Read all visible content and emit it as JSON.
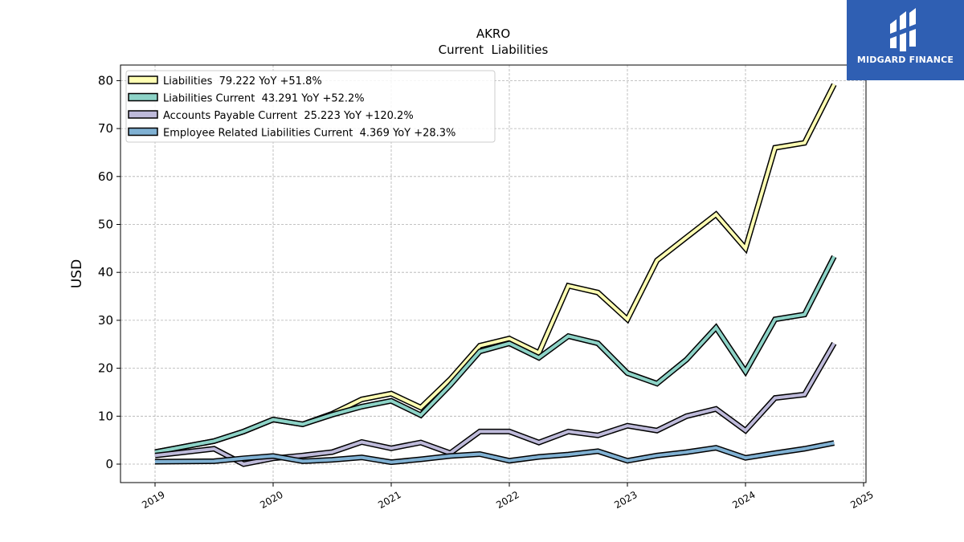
{
  "chart_data": {
    "type": "line",
    "title": "AKRO",
    "subtitle": "Current  Liabilities",
    "xlabel": "",
    "ylabel": "USD",
    "xlim": [
      2018.7,
      2025.0
    ],
    "ylim": [
      -4,
      83
    ],
    "x_ticks": [
      "2019",
      "2020",
      "2021",
      "2022",
      "2023",
      "2024",
      "2025"
    ],
    "y_ticks": [
      "0",
      "10",
      "20",
      "30",
      "40",
      "50",
      "60",
      "70",
      "80"
    ],
    "grid": true,
    "legend_position": "top-left",
    "series": [
      {
        "name": "Liabilities",
        "legend": "Liabilities  79.222 YoY +51.8%",
        "color": "#ffffb3",
        "x": [
          2019.0,
          2019.5,
          2019.75,
          2020.0,
          2020.25,
          2020.5,
          2020.75,
          2021.0,
          2021.25,
          2021.5,
          2021.75,
          2022.0,
          2022.25,
          2022.5,
          2022.75,
          2023.0,
          2023.25,
          2023.5,
          2023.75,
          2024.0,
          2024.25,
          2024.5,
          2024.75
        ],
        "values": [
          2.5,
          4.8,
          6.8,
          9.3,
          8.3,
          10.5,
          13.5,
          14.7,
          11.8,
          17.7,
          24.7,
          26.2,
          23.2,
          37.2,
          35.8,
          30.2,
          42.5,
          47.3,
          52.1,
          45.0,
          66.0,
          67.0,
          79.2
        ]
      },
      {
        "name": "Liabilities Current",
        "legend": "Liabilities Current  43.291 YoY +52.2%",
        "color": "#8dd3c7",
        "x": [
          2019.0,
          2019.5,
          2019.75,
          2020.0,
          2020.25,
          2020.5,
          2020.75,
          2021.0,
          2021.25,
          2021.5,
          2021.75,
          2022.0,
          2022.25,
          2022.5,
          2022.75,
          2023.0,
          2023.25,
          2023.5,
          2023.75,
          2024.0,
          2024.25,
          2024.5,
          2024.75
        ],
        "values": [
          2.5,
          4.8,
          6.8,
          9.3,
          8.3,
          10.3,
          12.0,
          13.2,
          10.2,
          16.5,
          23.5,
          25.2,
          22.2,
          26.7,
          25.2,
          19.0,
          16.8,
          21.8,
          28.5,
          19.3,
          30.2,
          31.2,
          43.3
        ]
      },
      {
        "name": "Accounts Payable Current",
        "legend": "Accounts Payable Current  25.223 YoY +120.2%",
        "color": "#bebada",
        "x": [
          2019.0,
          2019.5,
          2019.75,
          2020.0,
          2020.25,
          2020.5,
          2020.75,
          2021.0,
          2021.25,
          2021.5,
          2021.75,
          2022.0,
          2022.25,
          2022.5,
          2022.75,
          2023.0,
          2023.25,
          2023.5,
          2023.75,
          2024.0,
          2024.25,
          2024.5,
          2024.75
        ],
        "values": [
          1.8,
          3.2,
          0.0,
          1.2,
          1.8,
          2.5,
          4.6,
          3.3,
          4.5,
          2.3,
          6.8,
          6.8,
          4.5,
          6.8,
          6.0,
          8.0,
          7.0,
          10.0,
          11.5,
          7.0,
          13.8,
          14.5,
          25.2
        ]
      },
      {
        "name": "Employee Related Liabilities Current",
        "legend": "Employee Related Liabilities Current  4.369 YoY +28.3%",
        "color": "#80b1d3",
        "x": [
          2019.0,
          2019.5,
          2019.75,
          2020.0,
          2020.25,
          2020.5,
          2020.75,
          2021.0,
          2021.25,
          2021.5,
          2021.75,
          2022.0,
          2022.25,
          2022.5,
          2022.75,
          2023.0,
          2023.25,
          2023.5,
          2023.75,
          2024.0,
          2024.25,
          2024.5,
          2024.75
        ],
        "values": [
          0.5,
          0.6,
          1.2,
          1.7,
          0.6,
          0.9,
          1.4,
          0.4,
          1.0,
          1.7,
          2.1,
          0.7,
          1.5,
          2.0,
          2.7,
          0.7,
          1.8,
          2.5,
          3.4,
          1.3,
          2.3,
          3.2,
          4.4
        ]
      }
    ]
  },
  "logo": {
    "text": "MIDGARD FINANCE",
    "color": "#2f5fb3"
  }
}
